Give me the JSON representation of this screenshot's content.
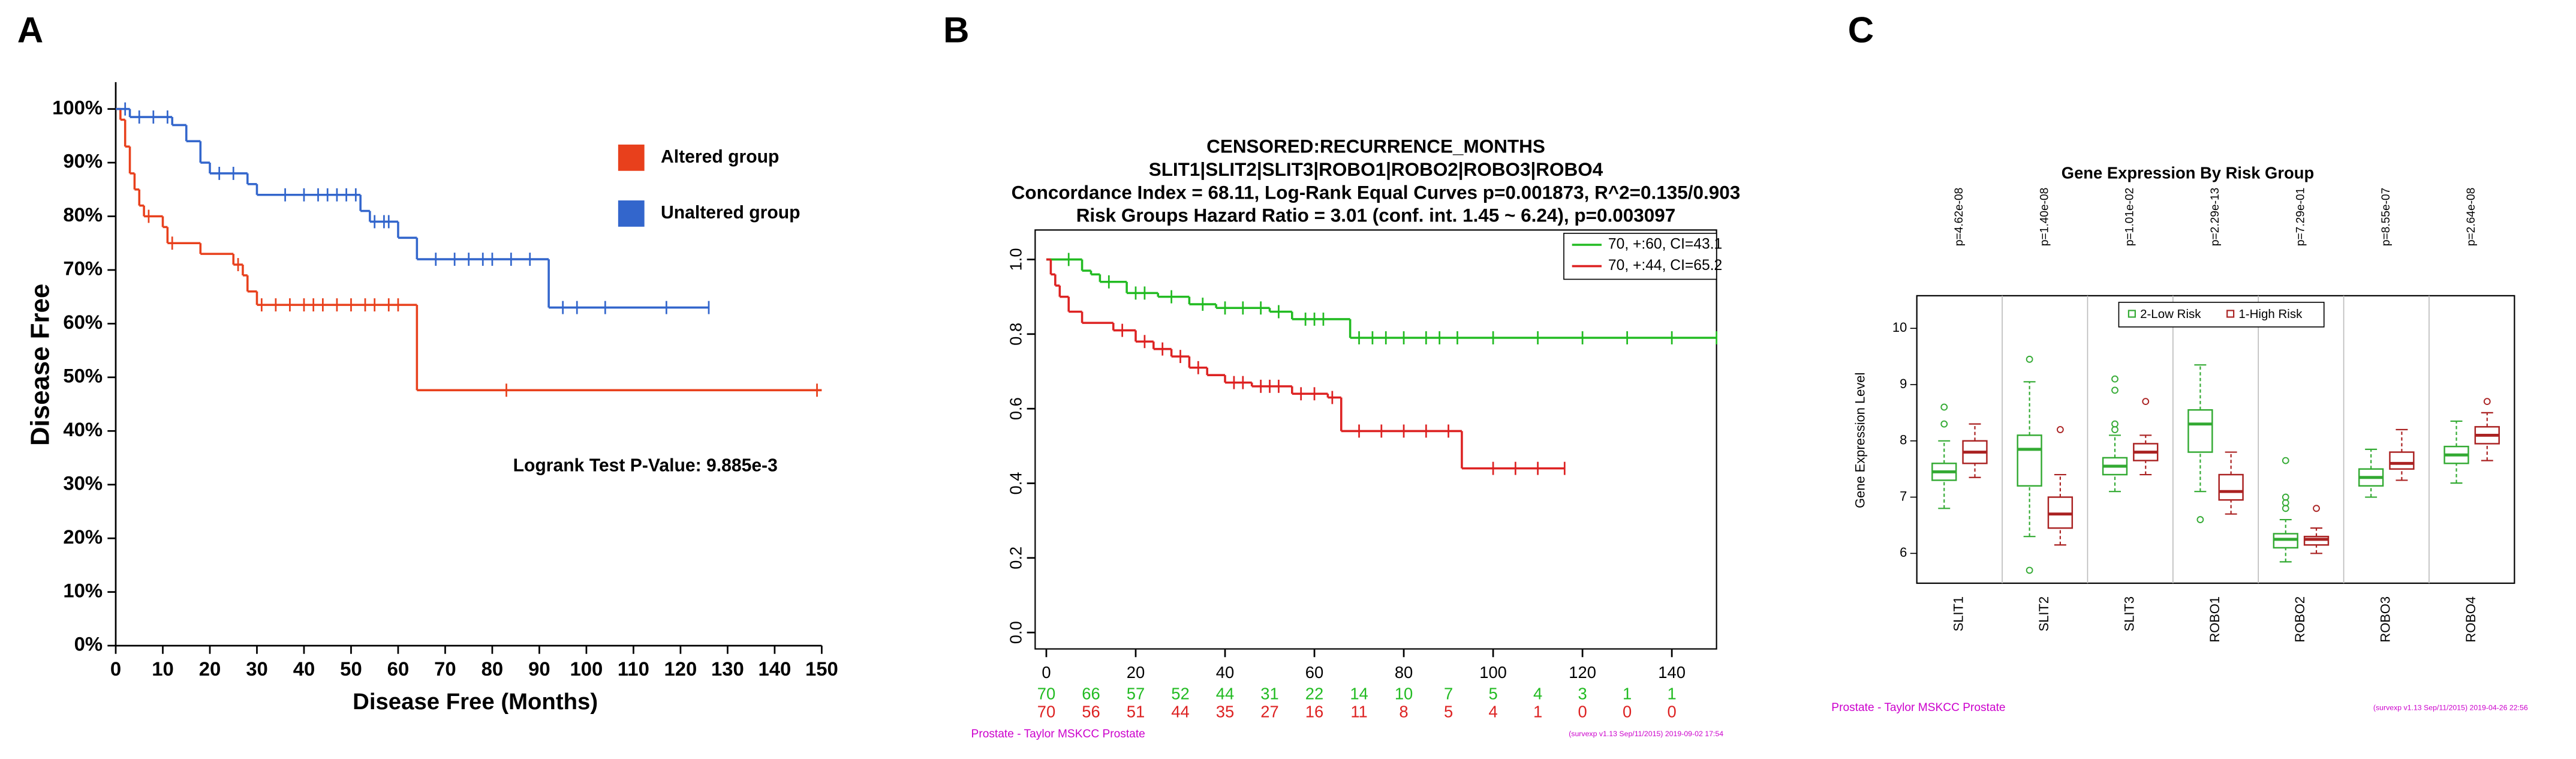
{
  "chart_data": [
    {
      "type": "line",
      "panel": "A",
      "step": true,
      "xlabel": "Disease Free (Months)",
      "ylabel": "Disease Free",
      "annotation": "Logrank Test P-Value: 9.885e-3",
      "legend": "right",
      "xlim": [
        0,
        150
      ],
      "xticks": [
        0,
        10,
        20,
        30,
        40,
        50,
        60,
        70,
        80,
        90,
        100,
        110,
        120,
        130,
        140,
        150
      ],
      "ylim": [
        0,
        105
      ],
      "yticks": [
        {
          "value": 0,
          "label": "0%"
        },
        {
          "value": 10,
          "label": "10%"
        },
        {
          "value": 20,
          "label": "20%"
        },
        {
          "value": 30,
          "label": "30%"
        },
        {
          "value": 40,
          "label": "40%"
        },
        {
          "value": 50,
          "label": "50%"
        },
        {
          "value": 60,
          "label": "60%"
        },
        {
          "value": 70,
          "label": "70%"
        },
        {
          "value": 80,
          "label": "80%"
        },
        {
          "value": 90,
          "label": "90%"
        },
        {
          "value": 100,
          "label": "100%"
        }
      ],
      "series": [
        {
          "name": "Altered group",
          "color": "#e8401c",
          "x": [
            0,
            1,
            2,
            3,
            4,
            5,
            6,
            10,
            11,
            18,
            25,
            27,
            28,
            30,
            64,
            150
          ],
          "values": [
            100,
            98,
            93,
            88,
            85,
            82,
            80,
            78,
            75,
            73,
            71,
            69,
            66,
            63.5,
            47.6,
            47.6
          ],
          "censor_x": [
            7,
            12,
            26,
            31,
            34,
            37,
            40,
            42,
            44,
            47,
            50,
            53,
            55,
            58,
            60,
            83,
            149
          ],
          "censor_y": [
            80,
            75,
            71,
            63.5,
            63.5,
            63.5,
            63.5,
            63.5,
            63.5,
            63.5,
            63.5,
            63.5,
            63.5,
            63.5,
            63.5,
            47.6,
            47.6
          ]
        },
        {
          "name": "Unaltered group",
          "color": "#3366cc",
          "x": [
            0,
            3,
            12,
            15,
            18,
            20,
            28,
            30,
            52,
            54,
            60,
            64,
            92,
            126
          ],
          "values": [
            100,
            98.5,
            97,
            94,
            90,
            88,
            86,
            84,
            81,
            79,
            76,
            72,
            63,
            63
          ],
          "censor_x": [
            2,
            5,
            8,
            11,
            22,
            25,
            36,
            40,
            43,
            45,
            47,
            49,
            51,
            55,
            57,
            58,
            68,
            72,
            75,
            78,
            80,
            84,
            88,
            95,
            98,
            104,
            117,
            126
          ],
          "censor_y": [
            100,
            98.5,
            98.5,
            98.5,
            88,
            88,
            84,
            84,
            84,
            84,
            84,
            84,
            84,
            79,
            79,
            79,
            72,
            72,
            72,
            72,
            72,
            72,
            72,
            63,
            63,
            63,
            63,
            63
          ]
        }
      ]
    },
    {
      "type": "line",
      "panel": "B",
      "step": true,
      "legend": "upper right",
      "title_lines": [
        "CENSORED:RECURRENCE_MONTHS",
        "SLIT1|SLIT2|SLIT3|ROBO1|ROBO2|ROBO3|ROBO4",
        "Concordance Index = 68.11, Log-Rank Equal Curves p=0.001873, R^2=0.135/0.903",
        "Risk Groups Hazard Ratio = 3.01 (conf. int. 1.45 ~ 6.24), p=0.003097"
      ],
      "footer_left": "Prostate - Taylor MSKCC Prostate",
      "footer_right": "(survexp v1.13 Sep/11/2015) 2019-09-02 17:54",
      "xlim": [
        -2.5,
        150
      ],
      "xticks": [
        0,
        20,
        40,
        60,
        80,
        100,
        120,
        140
      ],
      "ylim": [
        -0.044,
        1.079
      ],
      "yticks": [
        {
          "value": 0,
          "label": "0.0"
        },
        0.2,
        0.4,
        0.6,
        0.8,
        {
          "value": 1,
          "label": "1.0"
        }
      ],
      "series": [
        {
          "name": "70, +:60, CI=43.1",
          "color": "#22bb22",
          "x": [
            0,
            8,
            10,
            12,
            18,
            25,
            32,
            38,
            50,
            55,
            68,
            150
          ],
          "values": [
            1,
            0.97,
            0.96,
            0.94,
            0.91,
            0.9,
            0.88,
            0.87,
            0.86,
            0.84,
            0.79,
            0.79
          ],
          "censor_x": [
            5,
            14,
            20,
            22,
            28,
            35,
            40,
            44,
            48,
            52,
            58,
            60,
            62,
            70,
            73,
            76,
            80,
            85,
            88,
            92,
            100,
            110,
            120,
            130,
            140,
            150
          ],
          "censor_y": [
            1,
            0.94,
            0.91,
            0.91,
            0.9,
            0.88,
            0.87,
            0.87,
            0.87,
            0.86,
            0.84,
            0.84,
            0.84,
            0.79,
            0.79,
            0.79,
            0.79,
            0.79,
            0.79,
            0.79,
            0.79,
            0.79,
            0.79,
            0.79,
            0.79,
            0.79
          ],
          "at_risk": [
            70,
            66,
            57,
            52,
            44,
            31,
            22,
            14,
            10,
            7,
            5,
            4,
            3,
            1,
            1
          ]
        },
        {
          "name": "70, +:44, CI=65.2",
          "color": "#dd2222",
          "x": [
            0,
            1,
            2,
            3,
            5,
            8,
            15,
            20,
            24,
            28,
            32,
            36,
            40,
            46,
            55,
            63,
            66,
            93,
            116
          ],
          "values": [
            1,
            0.96,
            0.93,
            0.9,
            0.86,
            0.83,
            0.81,
            0.78,
            0.76,
            0.74,
            0.71,
            0.69,
            0.67,
            0.66,
            0.64,
            0.63,
            0.54,
            0.44,
            0.44
          ],
          "censor_x": [
            17,
            22,
            26,
            30,
            34,
            42,
            44,
            48,
            50,
            52,
            57,
            60,
            64,
            70,
            75,
            80,
            85,
            90,
            100,
            105,
            110,
            116
          ],
          "censor_y": [
            0.81,
            0.78,
            0.76,
            0.74,
            0.71,
            0.67,
            0.67,
            0.66,
            0.66,
            0.66,
            0.64,
            0.64,
            0.63,
            0.54,
            0.54,
            0.54,
            0.54,
            0.54,
            0.44,
            0.44,
            0.44,
            0.44
          ],
          "at_risk": [
            70,
            56,
            51,
            44,
            35,
            27,
            16,
            11,
            8,
            5,
            4,
            1,
            0,
            0,
            0
          ]
        }
      ]
    },
    {
      "type": "box",
      "panel": "C",
      "title": "Gene Expression By Risk Group",
      "ylabel": "Gene Expression Level",
      "legend": "top",
      "footer_left": "Prostate - Taylor MSKCC Prostate",
      "footer_right": "(survexp v1.13 Sep/11/2015) 2019-04-26 22:56",
      "categories": [
        "SLIT1",
        "SLIT2",
        "SLIT3",
        "ROBO1",
        "ROBO2",
        "ROBO3",
        "ROBO4"
      ],
      "p_values": [
        "p=4.62e-08",
        "p=1.40e-08",
        "p=1.01e-02",
        "p=2.29e-13",
        "p=7.29e-01",
        "p=8.55e-07",
        "p=2.64e-08"
      ],
      "ylim": [
        5.47,
        10.58
      ],
      "yticks": [
        6,
        7,
        8,
        9,
        10
      ],
      "series": [
        {
          "name": "2-Low Risk",
          "color": "#33aa33",
          "whisker_low": [
            6.8,
            6.3,
            7.1,
            7.1,
            5.85,
            7.0,
            7.25
          ],
          "q1": [
            7.3,
            7.2,
            7.4,
            7.8,
            6.1,
            7.2,
            7.6
          ],
          "median": [
            7.45,
            7.85,
            7.55,
            8.3,
            6.25,
            7.35,
            7.75
          ],
          "q3": [
            7.6,
            8.1,
            7.7,
            8.55,
            6.35,
            7.5,
            7.9
          ],
          "whisker_high": [
            8.0,
            9.05,
            8.1,
            9.35,
            6.6,
            7.85,
            8.35
          ],
          "outliers": [
            [
              8.6,
              8.3
            ],
            [
              9.45,
              5.7
            ],
            [
              9.1,
              8.9,
              8.3,
              8.2
            ],
            [
              6.6
            ],
            [
              7.65,
              7.0,
              6.9,
              6.8
            ],
            [],
            []
          ]
        },
        {
          "name": "1-High Risk",
          "color": "#aa2222",
          "whisker_low": [
            7.35,
            6.15,
            7.4,
            6.7,
            6.0,
            7.3,
            7.65
          ],
          "q1": [
            7.6,
            6.45,
            7.65,
            6.95,
            6.15,
            7.5,
            7.95
          ],
          "median": [
            7.8,
            6.7,
            7.8,
            7.1,
            6.25,
            7.6,
            8.1
          ],
          "q3": [
            8.0,
            7.0,
            7.95,
            7.4,
            6.3,
            7.8,
            8.25
          ],
          "whisker_high": [
            8.3,
            7.4,
            8.1,
            7.8,
            6.45,
            8.2,
            8.5
          ],
          "outliers": [
            [],
            [
              8.2
            ],
            [
              8.7
            ],
            [],
            [
              6.8
            ],
            [],
            [
              8.7
            ]
          ]
        }
      ]
    }
  ]
}
